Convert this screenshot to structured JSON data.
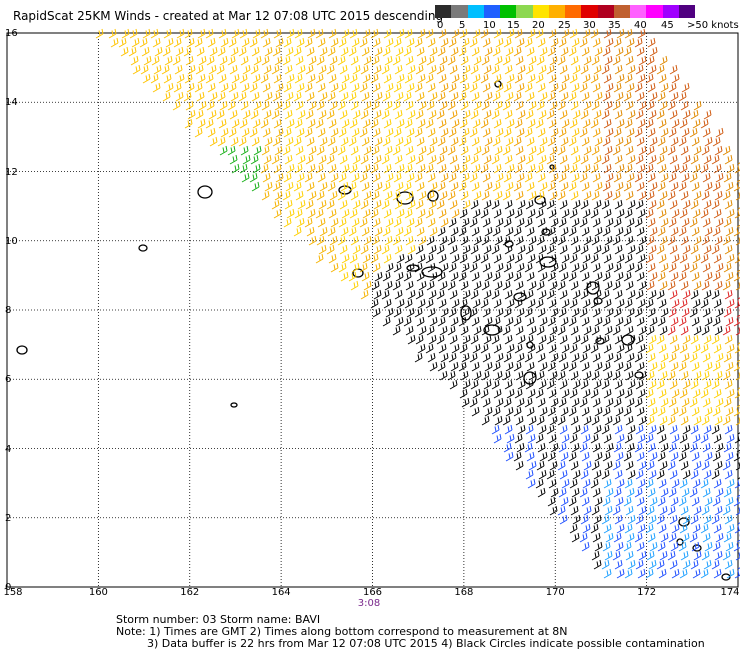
{
  "header": {
    "title": "RapidScat 25KM Winds - created at Mar 12 07:08 UTC 2015 descending"
  },
  "colorbar": {
    "labels": [
      "0",
      "5",
      "10",
      "15",
      "20",
      "25",
      "30",
      "35",
      "40",
      "45",
      ">50 knots"
    ],
    "colors": [
      "#2b2b2b",
      "#7a7a7a",
      "#00bfff",
      "#2060ff",
      "#00c000",
      "#8cd850",
      "#ffe400",
      "#ffb000",
      "#ff6a00",
      "#e00000",
      "#b00020",
      "#c06030",
      "#ff60ff",
      "#ff00ff",
      "#a000ff",
      "#500080"
    ]
  },
  "axes": {
    "y_labels": [
      "0",
      "2",
      "4",
      "6",
      "8",
      "10",
      "12",
      "14",
      "16"
    ],
    "x_labels": [
      "158",
      "160",
      "162",
      "164",
      "166",
      "168",
      "170",
      "172",
      "174"
    ]
  },
  "time_label": "3:08",
  "footer": {
    "line1": "Storm number: 03     Storm name: BAVI",
    "line2": "Note: 1) Times are GMT   2) Times along bottom correspond to measurement at 8N",
    "line3": "3) Data buffer is 22 hrs from Mar 12 07:08 UTC 2015   4) Black Circles indicate possible contamination"
  }
}
